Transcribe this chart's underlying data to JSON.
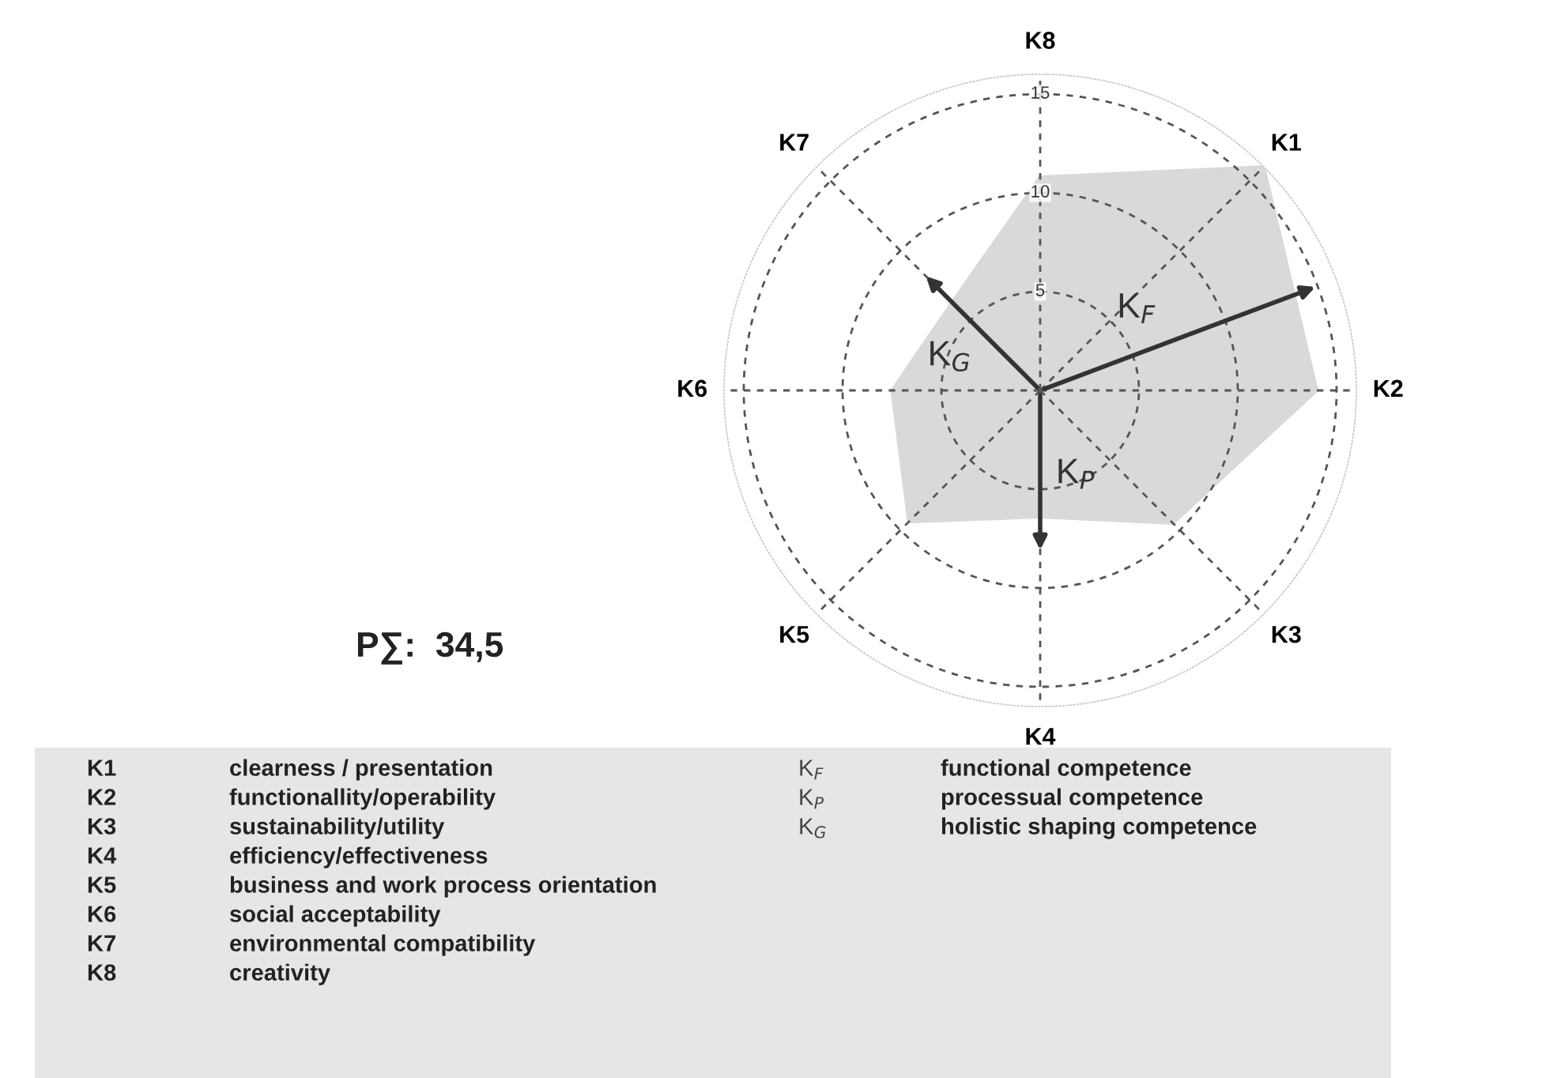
{
  "chart_data": {
    "type": "radar",
    "categories": [
      "K8",
      "K1",
      "K2",
      "K3",
      "K4",
      "K5",
      "K6",
      "K7"
    ],
    "series": [
      {
        "color": "#d9d9d9",
        "values": [
          10.8,
          16,
          14,
          9.5,
          6.4,
          9.4,
          7.5,
          6.3
        ]
      }
    ],
    "ylim": [
      0,
      16
    ],
    "yticks": [
      5,
      10,
      15
    ],
    "grid": true,
    "line_style": "dashed",
    "annotations": [
      "P∑:  34,5",
      "K$_{F}$",
      "K$_{P}$",
      "K$_{G}$",
      "K1",
      "clearness / presentation",
      "K2",
      "functionallity/operability",
      "K3",
      "sustainability/utility",
      "K4",
      "efficiency/effectiveness",
      "K5",
      "business and work process orientation",
      "K6",
      "social acceptability",
      "K7",
      "environmental compatibility",
      "K8",
      "creativity",
      "K$_{F}$",
      "functional competence",
      "K$_{P}$",
      "processual competence",
      "K$_{G}$",
      "holistic shaping competence"
    ]
  }
}
